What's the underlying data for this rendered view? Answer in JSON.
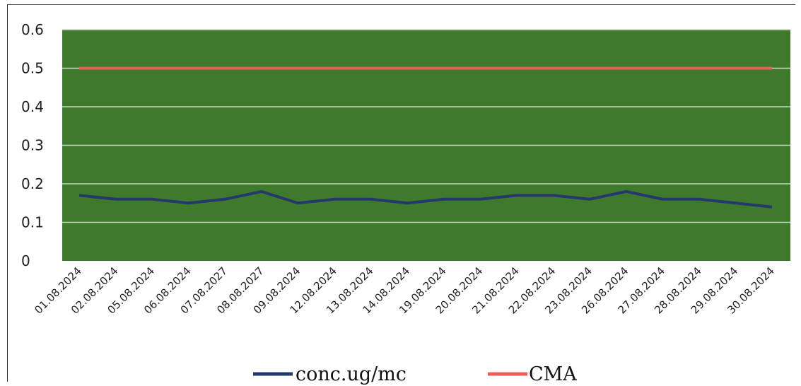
{
  "chart_data": {
    "type": "line",
    "categories": [
      "01.08.2024",
      "02.08.2024",
      "05.08.2024",
      "06.08.2024",
      "07.08.2027",
      "08.08.2027",
      "09.08.2024",
      "12.08.2024",
      "13.08.2024",
      "14.08.2024",
      "19.08.2024",
      "20.08.2024",
      "21.08.2024",
      "22.08.2024",
      "23.08.2024",
      "26.08.2024",
      "27.08.2024",
      "28.08.2024",
      "29.08.2024",
      "30.08.2024"
    ],
    "series": [
      {
        "name": "conc.ug/mc",
        "color": "#24386b",
        "values": [
          0.17,
          0.16,
          0.16,
          0.15,
          0.16,
          0.18,
          0.15,
          0.16,
          0.16,
          0.15,
          0.16,
          0.16,
          0.17,
          0.17,
          0.16,
          0.18,
          0.16,
          0.16,
          0.15,
          0.14
        ]
      },
      {
        "name": "CMA",
        "color": "#f25a5a",
        "values": [
          0.5,
          0.5,
          0.5,
          0.5,
          0.5,
          0.5,
          0.5,
          0.5,
          0.5,
          0.5,
          0.5,
          0.5,
          0.5,
          0.5,
          0.5,
          0.5,
          0.5,
          0.5,
          0.5,
          0.5
        ]
      }
    ],
    "ylim": [
      0,
      0.6
    ],
    "yticks": [
      "0",
      "0.1",
      "0.2",
      "0.3",
      "0.4",
      "0.5",
      "0.6"
    ],
    "ytick_values": [
      0,
      0.1,
      0.2,
      0.3,
      0.4,
      0.5,
      0.6
    ],
    "grid": true,
    "plot_background": "#3f7a2c",
    "gridline_color": "#c9d8c0",
    "legend_position": "bottom"
  }
}
